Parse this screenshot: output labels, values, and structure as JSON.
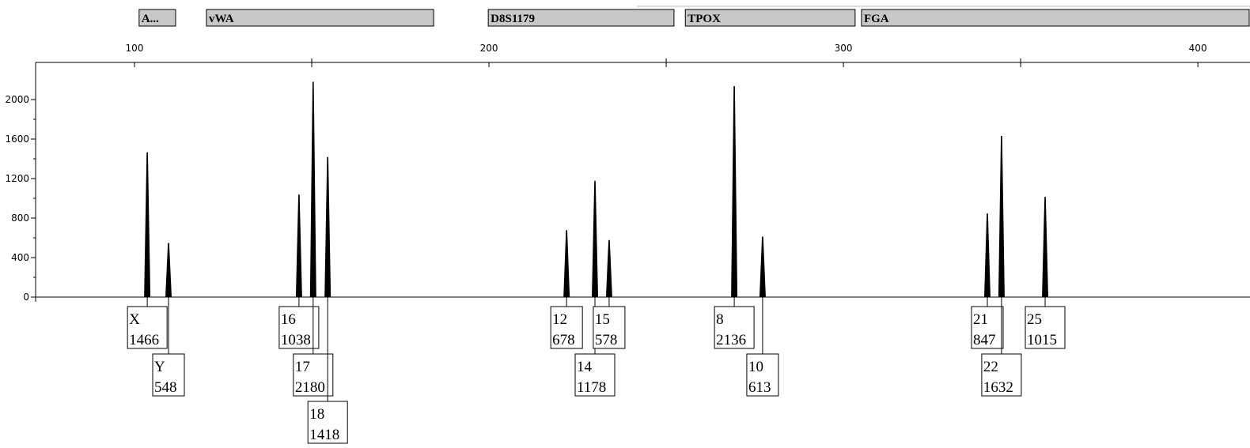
{
  "chart_data": {
    "type": "peaks",
    "xlim": [
      72.1,
      414.7
    ],
    "xticks": [
      100,
      200,
      300,
      400
    ],
    "ylim": [
      0,
      2376
    ],
    "yticks": [
      0,
      400,
      800,
      1200,
      1600,
      2000
    ],
    "color": "#000000",
    "loci": [
      {
        "name": "A...",
        "range": [
          101.3,
          111.6
        ]
      },
      {
        "name": "vWA",
        "range": [
          120.3,
          184.4
        ]
      },
      {
        "name": "D8S1179",
        "range": [
          199.8,
          252.2
        ]
      },
      {
        "name": "TPOX",
        "range": [
          255.4,
          303.3
        ]
      },
      {
        "name": "FGA",
        "range": [
          305.1,
          414.7
        ]
      }
    ],
    "peaks": [
      {
        "allele": "X",
        "x": 103.6,
        "height": 1466
      },
      {
        "allele": "Y",
        "x": 109.6,
        "height": 548
      },
      {
        "allele": "16",
        "x": 146.4,
        "height": 1038
      },
      {
        "allele": "17",
        "x": 150.4,
        "height": 2180
      },
      {
        "allele": "18",
        "x": 154.5,
        "height": 1418
      },
      {
        "allele": "12",
        "x": 221.9,
        "height": 678
      },
      {
        "allele": "14",
        "x": 229.9,
        "height": 1178
      },
      {
        "allele": "15",
        "x": 233.9,
        "height": 578
      },
      {
        "allele": "8",
        "x": 269.2,
        "height": 2136
      },
      {
        "allele": "10",
        "x": 277.2,
        "height": 613
      },
      {
        "allele": "21",
        "x": 340.6,
        "height": 847
      },
      {
        "allele": "22",
        "x": 344.6,
        "height": 1632
      },
      {
        "allele": "25",
        "x": 356.9,
        "height": 1015
      }
    ]
  }
}
